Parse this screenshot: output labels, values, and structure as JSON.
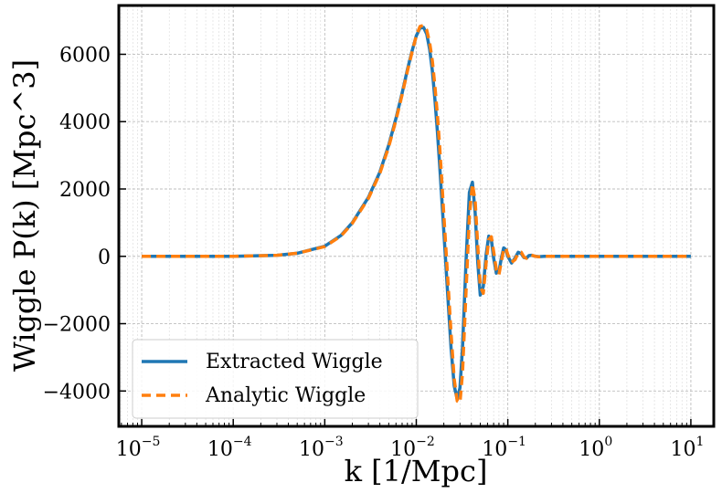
{
  "chart_data": {
    "type": "line",
    "title": "",
    "xlabel": "k [1/Mpc]",
    "ylabel": "Wiggle P(k) [Mpc^3]",
    "xscale": "log",
    "xlim": [
      5.62e-06,
      17.8
    ],
    "ylim": [
      -5050,
      7450
    ],
    "grid": true,
    "legend_position": "lower-left",
    "x_ticks": [
      {
        "value": 1e-05,
        "base": "10",
        "exp": "−5"
      },
      {
        "value": 0.0001,
        "base": "10",
        "exp": "−4"
      },
      {
        "value": 0.001,
        "base": "10",
        "exp": "−3"
      },
      {
        "value": 0.01,
        "base": "10",
        "exp": "−2"
      },
      {
        "value": 0.1,
        "base": "10",
        "exp": "−1"
      },
      {
        "value": 1,
        "base": "10",
        "exp": "0"
      },
      {
        "value": 10,
        "base": "10",
        "exp": "1"
      }
    ],
    "y_ticks": [
      {
        "value": -4000,
        "label": "−4000"
      },
      {
        "value": -2000,
        "label": "−2000"
      },
      {
        "value": 0,
        "label": "0"
      },
      {
        "value": 2000,
        "label": "2000"
      },
      {
        "value": 4000,
        "label": "4000"
      },
      {
        "value": 6000,
        "label": "6000"
      }
    ],
    "series": [
      {
        "name": "Extracted Wiggle",
        "color": "#1f77b4",
        "dash": "solid",
        "x": [
          1e-05,
          0.0001,
          0.0003,
          0.0005,
          0.001,
          0.0015,
          0.002,
          0.003,
          0.004,
          0.005,
          0.006,
          0.007,
          0.008,
          0.009,
          0.01,
          0.011,
          0.012,
          0.013,
          0.014,
          0.015,
          0.016,
          0.017,
          0.018,
          0.019,
          0.02,
          0.022,
          0.024,
          0.026,
          0.028,
          0.03,
          0.032,
          0.035,
          0.038,
          0.041,
          0.044,
          0.047,
          0.05,
          0.054,
          0.058,
          0.062,
          0.066,
          0.07,
          0.075,
          0.08,
          0.085,
          0.09,
          0.095,
          0.1,
          0.11,
          0.12,
          0.13,
          0.14,
          0.15,
          0.16,
          0.17,
          0.18,
          0.2,
          0.22,
          0.25,
          0.3,
          0.5,
          1,
          3,
          10
        ],
        "values": [
          0,
          0,
          30,
          90,
          300,
          620,
          1000,
          1750,
          2500,
          3300,
          4100,
          4850,
          5550,
          6100,
          6550,
          6780,
          6800,
          6600,
          6150,
          5500,
          4650,
          3700,
          2700,
          1700,
          750,
          -1100,
          -2750,
          -3850,
          -4250,
          -3900,
          -2700,
          -100,
          1900,
          2200,
          1300,
          -200,
          -1150,
          -900,
          50,
          600,
          500,
          -50,
          -500,
          -450,
          -50,
          250,
          200,
          0,
          -200,
          -50,
          120,
          80,
          -40,
          -50,
          20,
          30,
          0,
          -10,
          0,
          0,
          0,
          0,
          0,
          0
        ]
      },
      {
        "name": "Analytic Wiggle",
        "color": "#ff7f0e",
        "dash": "dashed",
        "x": [
          1e-05,
          0.0001,
          0.0003,
          0.0005,
          0.001,
          0.0015,
          0.002,
          0.003,
          0.004,
          0.005,
          0.006,
          0.007,
          0.008,
          0.009,
          0.01,
          0.011,
          0.012,
          0.013,
          0.014,
          0.015,
          0.016,
          0.017,
          0.018,
          0.019,
          0.02,
          0.022,
          0.024,
          0.026,
          0.028,
          0.03,
          0.032,
          0.035,
          0.038,
          0.041,
          0.044,
          0.047,
          0.05,
          0.054,
          0.058,
          0.062,
          0.066,
          0.07,
          0.075,
          0.08,
          0.085,
          0.09,
          0.095,
          0.1,
          0.11,
          0.12,
          0.13,
          0.14,
          0.15,
          0.16,
          0.17,
          0.18,
          0.2,
          0.22,
          0.25,
          0.3,
          0.5,
          1,
          3,
          10
        ],
        "values": [
          0,
          0,
          30,
          90,
          290,
          600,
          980,
          1720,
          2460,
          3250,
          4050,
          4800,
          5500,
          6070,
          6550,
          6830,
          6860,
          6720,
          6350,
          5800,
          5050,
          4200,
          3250,
          2250,
          1250,
          -600,
          -2300,
          -3650,
          -4300,
          -4350,
          -3450,
          -1000,
          1200,
          2150,
          1650,
          300,
          -900,
          -1100,
          -200,
          500,
          580,
          150,
          -400,
          -550,
          -150,
          200,
          250,
          50,
          -180,
          -100,
          100,
          120,
          -20,
          -60,
          10,
          40,
          0,
          -15,
          0,
          0,
          0,
          0,
          0,
          0
        ]
      }
    ]
  }
}
